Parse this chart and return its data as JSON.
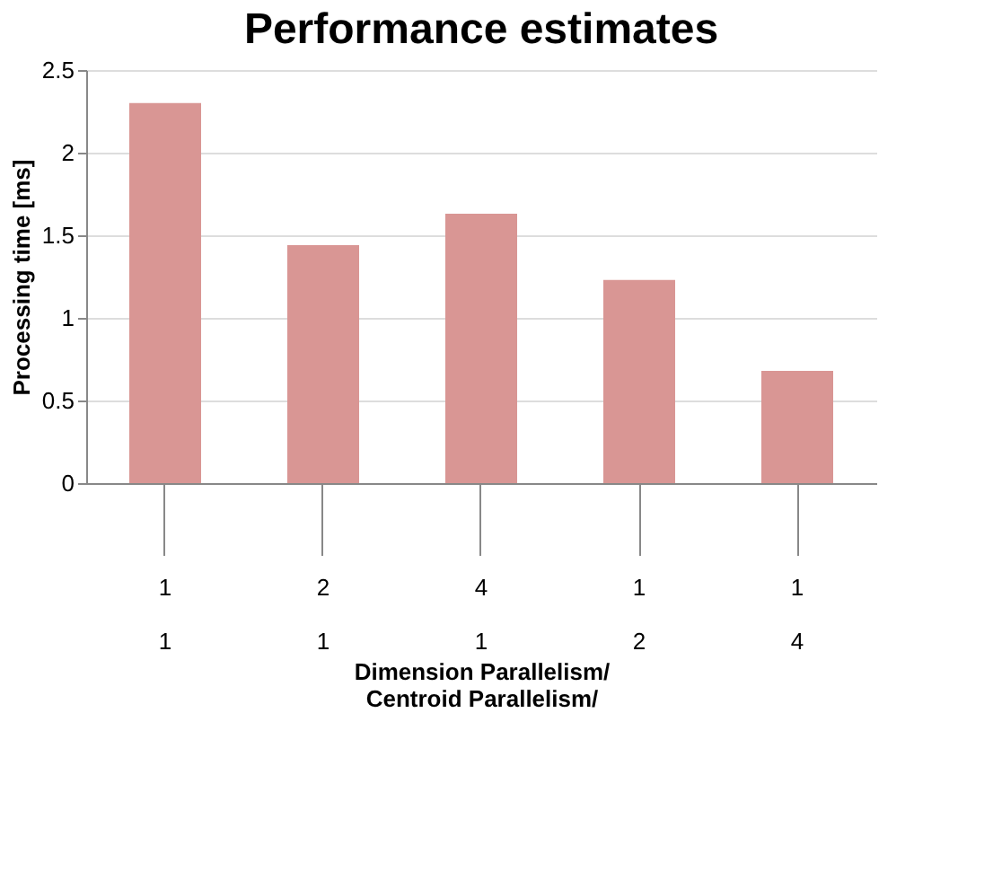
{
  "chart_data": {
    "type": "bar",
    "title": "Performance estimates",
    "xlabel": "Dimension Parallelism/\nCentroid Parallelism/",
    "ylabel": "Processing time [ms]",
    "categories": [
      "1\n1",
      "2\n1",
      "4\n1",
      "1\n2",
      "1\n4"
    ],
    "values": [
      2.3,
      1.44,
      1.63,
      1.23,
      0.68
    ],
    "color": "#d99694",
    "ylim": [
      0,
      2.5
    ],
    "yticks": [
      0,
      0.5,
      1,
      1.5,
      2,
      2.5
    ],
    "grid": "y"
  }
}
